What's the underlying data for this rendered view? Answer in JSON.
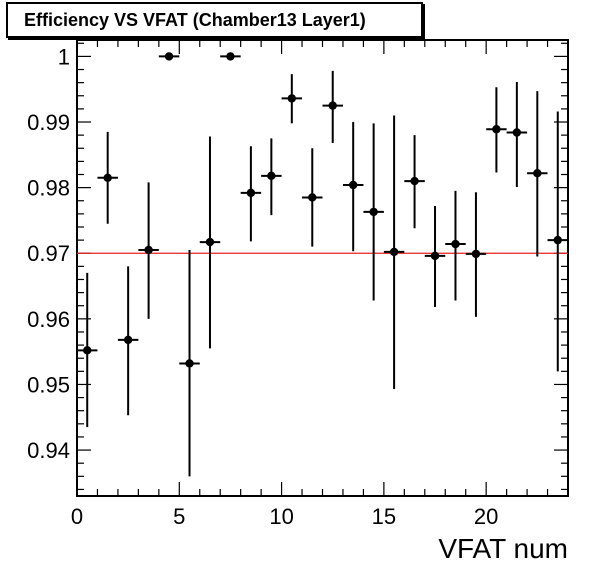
{
  "chart_data": {
    "type": "scatter",
    "title": "Efficiency VS VFAT (Chamber13 Layer1)",
    "xlabel": "VFAT num",
    "ylabel": "",
    "xlim": [
      0,
      24
    ],
    "ylim": [
      0.933,
      1.0025
    ],
    "x_ticks": [
      0,
      5,
      10,
      15,
      20
    ],
    "y_ticks": [
      0.94,
      0.95,
      0.96,
      0.97,
      0.98,
      0.99,
      1
    ],
    "x_tick_labels": [
      "0",
      "5",
      "10",
      "15",
      "20"
    ],
    "y_tick_labels": [
      "0.94",
      "0.95",
      "0.96",
      "0.97",
      "0.98",
      "0.99",
      "1"
    ],
    "reference_line": {
      "y": 0.97,
      "color": "#e8221e"
    },
    "marker_color": "#000000",
    "x_error": 0.5,
    "points": [
      {
        "x": 0.5,
        "y": 0.9552,
        "lo": 0.9435,
        "hi": 0.967
      },
      {
        "x": 1.5,
        "y": 0.9815,
        "lo": 0.9745,
        "hi": 0.9885
      },
      {
        "x": 2.5,
        "y": 0.9568,
        "lo": 0.9453,
        "hi": 0.968
      },
      {
        "x": 3.5,
        "y": 0.9705,
        "lo": 0.96,
        "hi": 0.9808
      },
      {
        "x": 4.5,
        "y": 1.0,
        "lo": 1.0,
        "hi": 1.0
      },
      {
        "x": 5.5,
        "y": 0.9532,
        "lo": 0.936,
        "hi": 0.9705
      },
      {
        "x": 6.5,
        "y": 0.9717,
        "lo": 0.9555,
        "hi": 0.9878
      },
      {
        "x": 7.5,
        "y": 1.0,
        "lo": 1.0,
        "hi": 1.0
      },
      {
        "x": 8.5,
        "y": 0.9792,
        "lo": 0.9718,
        "hi": 0.9863
      },
      {
        "x": 9.5,
        "y": 0.9818,
        "lo": 0.9758,
        "hi": 0.9875
      },
      {
        "x": 10.5,
        "y": 0.9936,
        "lo": 0.9898,
        "hi": 0.9973
      },
      {
        "x": 11.5,
        "y": 0.9785,
        "lo": 0.971,
        "hi": 0.986
      },
      {
        "x": 12.5,
        "y": 0.9925,
        "lo": 0.9868,
        "hi": 0.9978
      },
      {
        "x": 13.5,
        "y": 0.9804,
        "lo": 0.9703,
        "hi": 0.99
      },
      {
        "x": 14.5,
        "y": 0.9763,
        "lo": 0.9628,
        "hi": 0.9898
      },
      {
        "x": 15.5,
        "y": 0.9702,
        "lo": 0.9493,
        "hi": 0.991
      },
      {
        "x": 16.5,
        "y": 0.981,
        "lo": 0.9738,
        "hi": 0.988
      },
      {
        "x": 17.5,
        "y": 0.9696,
        "lo": 0.9618,
        "hi": 0.9772
      },
      {
        "x": 18.5,
        "y": 0.9714,
        "lo": 0.9628,
        "hi": 0.9795
      },
      {
        "x": 19.5,
        "y": 0.9699,
        "lo": 0.9603,
        "hi": 0.9793
      },
      {
        "x": 20.5,
        "y": 0.9889,
        "lo": 0.9823,
        "hi": 0.9953
      },
      {
        "x": 21.5,
        "y": 0.9884,
        "lo": 0.9801,
        "hi": 0.9961
      },
      {
        "x": 22.5,
        "y": 0.9822,
        "lo": 0.9695,
        "hi": 0.9947
      },
      {
        "x": 23.5,
        "y": 0.972,
        "lo": 0.952,
        "hi": 0.9916
      }
    ]
  }
}
